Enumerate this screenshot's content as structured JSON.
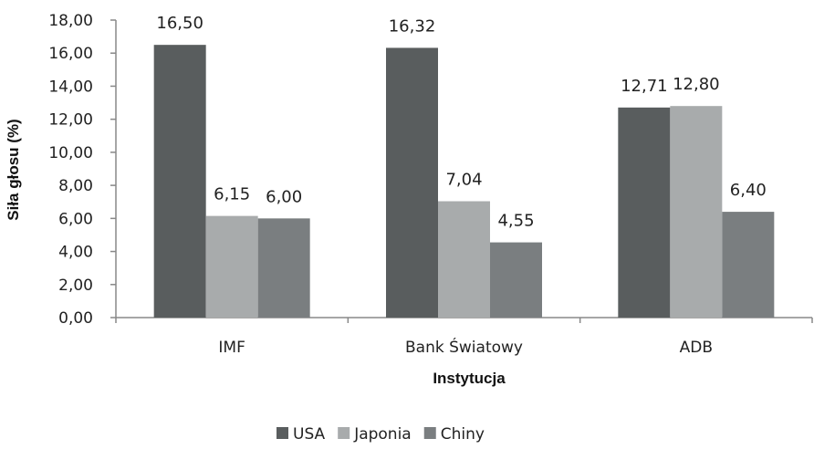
{
  "chart_data": {
    "type": "bar",
    "xlabel": "Instytucja",
    "ylabel": "Siła głosu (%)",
    "categories": [
      "IMF",
      "Bank Światowy",
      "ADB"
    ],
    "series": [
      {
        "name": "USA",
        "color": "#595d5e",
        "values": [
          16.5,
          16.32,
          12.71
        ],
        "labels": [
          "16,50",
          "16,32",
          "12,71"
        ]
      },
      {
        "name": "Japonia",
        "color": "#a8abac",
        "values": [
          6.15,
          7.04,
          12.8
        ],
        "labels": [
          "6,15",
          "7,04",
          "12,80"
        ]
      },
      {
        "name": "Chiny",
        "color": "#7a7e80",
        "values": [
          6.0,
          4.55,
          6.4
        ],
        "labels": [
          "6,00",
          "4,55",
          "6,40"
        ]
      }
    ],
    "ylim": [
      0,
      18
    ],
    "yticks": [
      "0,00",
      "2,00",
      "4,00",
      "6,00",
      "8,00",
      "10,00",
      "12,00",
      "14,00",
      "16,00",
      "18,00"
    ],
    "grid": false,
    "legend_position": "bottom"
  }
}
